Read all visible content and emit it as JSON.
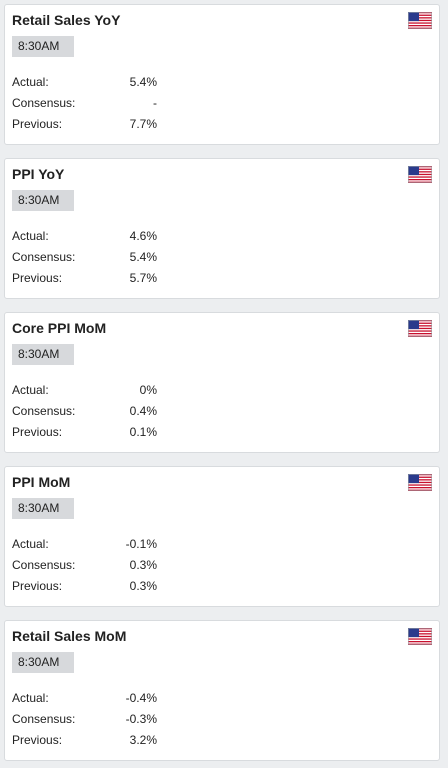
{
  "labels": {
    "actual": "Actual:",
    "consensus": "Consensus:",
    "previous": "Previous:"
  },
  "flag_icon": "us-flag-icon",
  "colors": {
    "card_background": "#ffffff",
    "page_background": "#eceef0",
    "time_badge_background": "#d7d9dc"
  },
  "events": [
    {
      "title": "Retail Sales YoY",
      "time": "8:30AM",
      "actual": "5.4%",
      "consensus": "-",
      "previous": "7.7%"
    },
    {
      "title": "PPI YoY",
      "time": "8:30AM",
      "actual": "4.6%",
      "consensus": "5.4%",
      "previous": "5.7%"
    },
    {
      "title": "Core PPI MoM",
      "time": "8:30AM",
      "actual": "0%",
      "consensus": "0.4%",
      "previous": "0.1%"
    },
    {
      "title": "PPI MoM",
      "time": "8:30AM",
      "actual": "-0.1%",
      "consensus": "0.3%",
      "previous": "0.3%"
    },
    {
      "title": "Retail Sales MoM",
      "time": "8:30AM",
      "actual": "-0.4%",
      "consensus": "-0.3%",
      "previous": "3.2%"
    }
  ]
}
